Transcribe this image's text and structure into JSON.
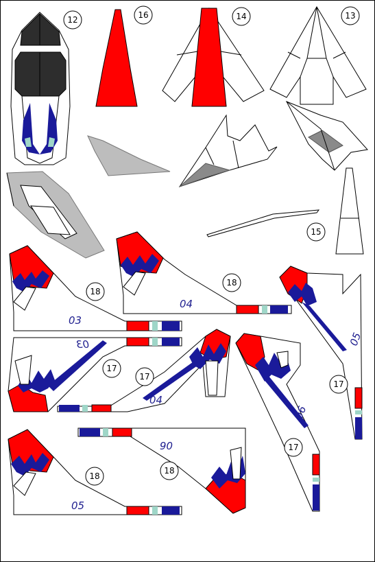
{
  "part_numbers": {
    "p12": "12",
    "p16": "16",
    "p14": "14",
    "p13": "13",
    "p15": "15",
    "p18_a": "18",
    "p18_b": "18",
    "p18_c": "18",
    "p18_d": "18",
    "p17_a": "17",
    "p17_b": "17",
    "p17_c": "17",
    "p17_d": "17"
  },
  "tail_codes": {
    "t1": "03",
    "t2": "04",
    "t3": "05",
    "t4": "03",
    "t5": "04",
    "t6": "06",
    "t7": "05",
    "t8": "06"
  },
  "colors": {
    "red": "#ff0000",
    "blue": "#1a1a9a",
    "teal": "#9fd6c8",
    "grey": "#bdbdbd",
    "dark": "#2d2d2d"
  }
}
